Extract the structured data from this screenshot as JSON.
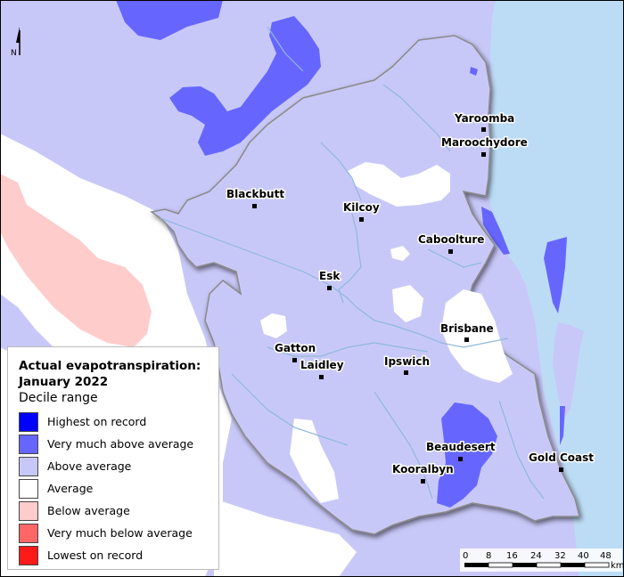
{
  "map": {
    "north_label": "N",
    "colors": {
      "highest": "#0000ff",
      "very_much_above": "#6666ff",
      "above": "#c8c8f8",
      "average": "#ffffff",
      "below": "#ffcccc",
      "very_much_below": "#ff6666",
      "lowest": "#ff1a1a",
      "ocean": "#bcdcf5",
      "river": "#8fb8dc",
      "boundary": "#808080"
    },
    "places": [
      {
        "name": "Yaroomba"
      },
      {
        "name": "Maroochydore"
      },
      {
        "name": "Blackbutt"
      },
      {
        "name": "Kilcoy"
      },
      {
        "name": "Caboolture"
      },
      {
        "name": "Esk"
      },
      {
        "name": "Brisbane"
      },
      {
        "name": "Gatton"
      },
      {
        "name": "Laidley"
      },
      {
        "name": "Ipswich"
      },
      {
        "name": "Beaudesert"
      },
      {
        "name": "Kooralbyn"
      },
      {
        "name": "Gold Coast"
      }
    ]
  },
  "legend": {
    "title_line1": "Actual evapotranspiration:",
    "title_line2": "January 2022",
    "subtitle": "Decile range",
    "items": [
      {
        "label": "Highest on record",
        "color": "#0000ff"
      },
      {
        "label": "Very much above average",
        "color": "#6666ff"
      },
      {
        "label": "Above average",
        "color": "#c8c8f8"
      },
      {
        "label": "Average",
        "color": "#ffffff"
      },
      {
        "label": "Below average",
        "color": "#ffcccc"
      },
      {
        "label": "Very much below average",
        "color": "#ff6666"
      },
      {
        "label": "Lowest on record",
        "color": "#ff1a1a"
      }
    ]
  },
  "scale_bar": {
    "ticks": [
      "0",
      "8",
      "16",
      "24",
      "32",
      "40",
      "48"
    ],
    "unit": "km"
  }
}
